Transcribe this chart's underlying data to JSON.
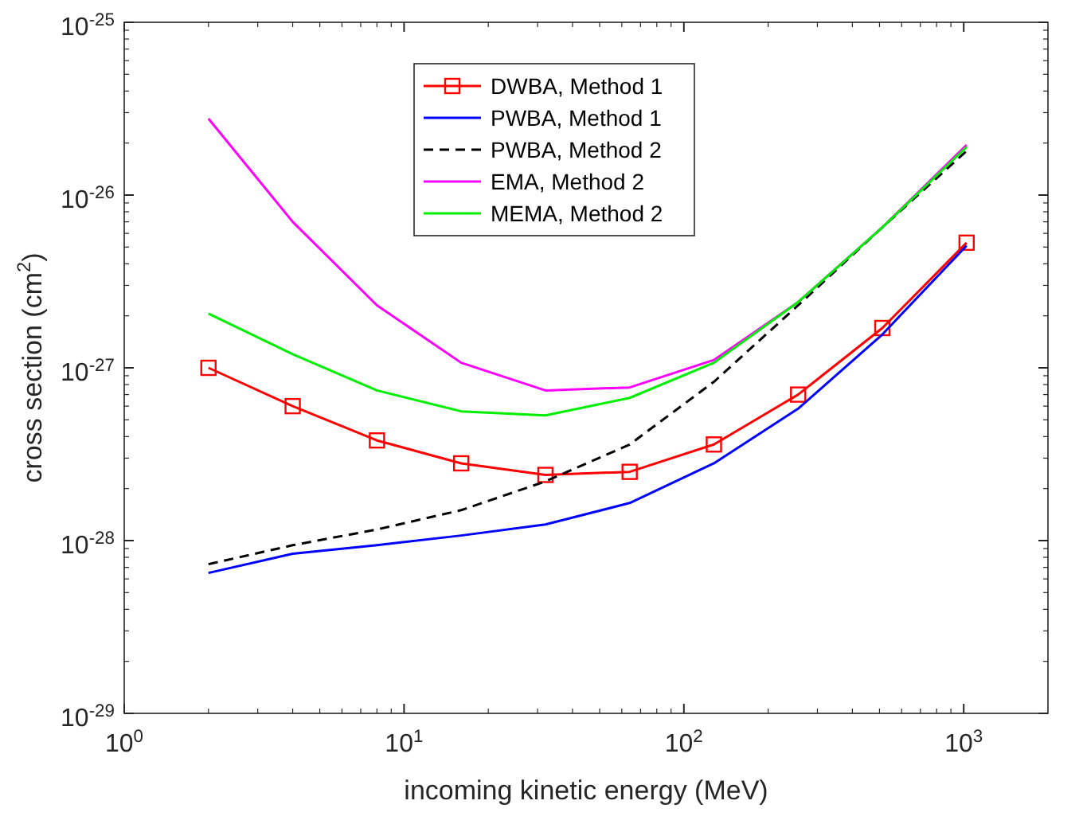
{
  "chart_data": {
    "type": "line",
    "xlabel": "incoming kinetic energy (MeV)",
    "ylabel": "cross section (cm$^{2}$)",
    "log": "xy",
    "grid": false,
    "legend": "top",
    "xlim": [
      1,
      2000
    ],
    "ylim": [
      1e-29,
      1e-25
    ],
    "xticks": [
      {
        "value": 1,
        "label": "10$^{0}$"
      },
      {
        "value": 10,
        "label": "10$^{1}$"
      },
      {
        "value": 100,
        "label": "10$^{2}$"
      },
      {
        "value": 1000,
        "label": "10$^{3}$"
      }
    ],
    "yticks": [
      {
        "value": 1e-29,
        "label": "10$^{-29}$"
      },
      {
        "value": 1e-28,
        "label": "10$^{-28}$"
      },
      {
        "value": 1e-27,
        "label": "10$^{-27}$"
      },
      {
        "value": 1e-26,
        "label": "10$^{-26}$"
      },
      {
        "value": 1e-25,
        "label": "10$^{-25}$"
      }
    ],
    "x": [
      2,
      4,
      8,
      16,
      32,
      64,
      128,
      256,
      512,
      1024
    ],
    "series": [
      {
        "name": "DWBA, Method 1",
        "color": "#ff0000",
        "marker": "square",
        "line_style": "solid",
        "values": [
          1e-27,
          6e-28,
          3.8e-28,
          2.8e-28,
          2.4e-28,
          2.5e-28,
          3.6e-28,
          7e-28,
          1.7e-27,
          5.3e-27
        ]
      },
      {
        "name": "PWBA, Method 1",
        "color": "#0000ff",
        "marker": "none",
        "line_style": "solid",
        "values": [
          6.5e-29,
          8.4e-29,
          9.4e-29,
          1.07e-28,
          1.24e-28,
          1.65e-28,
          2.8e-28,
          5.8e-28,
          1.56e-27,
          5.1e-27
        ]
      },
      {
        "name": "PWBA, Method 2",
        "color": "#000000",
        "marker": "none",
        "line_style": "dashed",
        "values": [
          7.3e-29,
          9.4e-29,
          1.16e-28,
          1.5e-28,
          2.2e-28,
          3.6e-28,
          8.3e-28,
          2.3e-27,
          6.5e-27,
          1.8e-26
        ]
      },
      {
        "name": "EMA, Method 2",
        "color": "#ff00ff",
        "marker": "none",
        "line_style": "solid",
        "values": [
          2.77e-26,
          7e-27,
          2.3e-27,
          1.07e-27,
          7.4e-28,
          7.7e-28,
          1.11e-27,
          2.4e-27,
          6.5e-27,
          1.95e-26
        ]
      },
      {
        "name": "MEMA, Method 2",
        "color": "#00ee00",
        "marker": "none",
        "line_style": "solid",
        "values": [
          2.06e-27,
          1.2e-27,
          7.4e-28,
          5.6e-28,
          5.3e-28,
          6.7e-28,
          1.07e-27,
          2.4e-27,
          6.5e-27,
          1.9e-26
        ]
      }
    ]
  }
}
